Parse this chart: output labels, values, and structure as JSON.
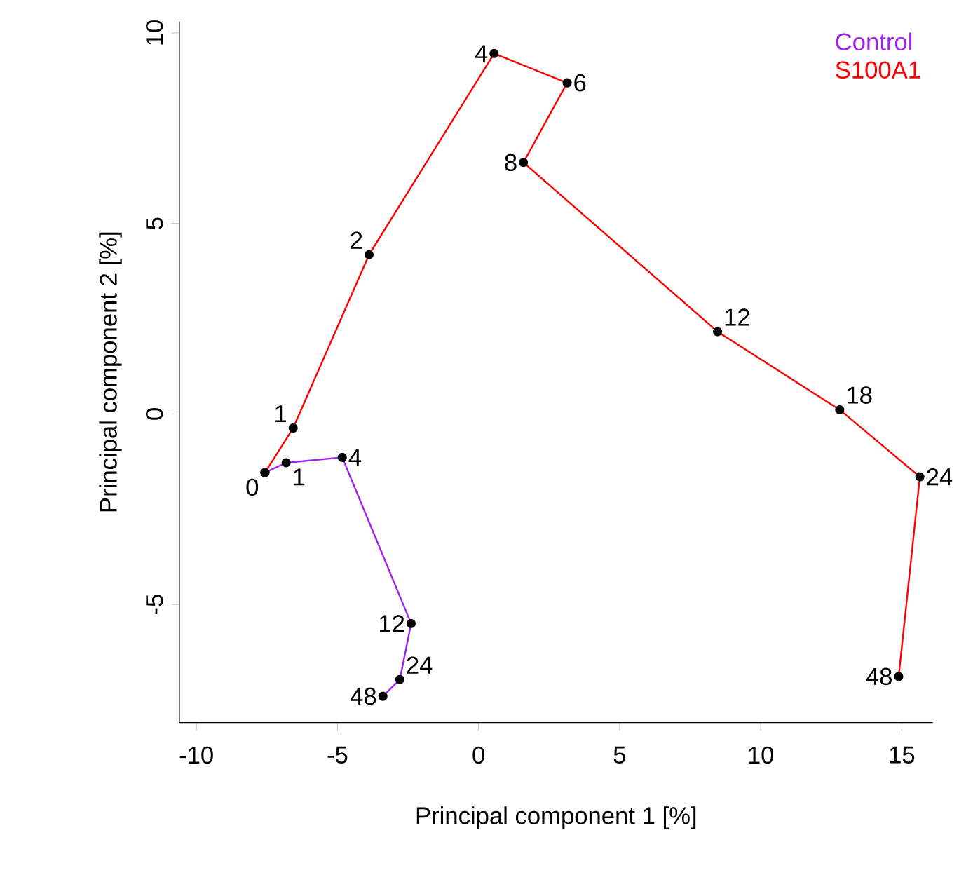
{
  "chart_data": {
    "type": "line",
    "xlabel": "Principal component 1 [%]",
    "ylabel": "Principal component 2 [%]",
    "xlim": [
      -10.6,
      16.1
    ],
    "ylim": [
      -8.1,
      10.3
    ],
    "xticks": [
      -10,
      -5,
      0,
      5,
      10,
      15
    ],
    "yticks": [
      -5,
      0,
      5,
      10
    ],
    "marker": "circle",
    "legend": "top right",
    "grid": false,
    "series": [
      {
        "name": "Control",
        "color": "#a020f0",
        "x": [
          -7.57,
          -6.82,
          -4.83,
          -2.39,
          -2.79,
          -3.39
        ],
        "values": [
          -1.54,
          -1.28,
          -1.14,
          -5.5,
          -6.97,
          -7.41
        ]
      },
      {
        "name": "S100A1",
        "color": "#ff0000",
        "x": [
          -7.57,
          -6.57,
          -3.88,
          0.55,
          3.14,
          1.59,
          8.47,
          12.8,
          15.64,
          14.89
        ],
        "values": [
          -1.54,
          -0.37,
          4.18,
          9.46,
          8.69,
          6.6,
          2.16,
          0.11,
          -1.65,
          -6.89
        ]
      }
    ],
    "annotations": [
      {
        "text": "0",
        "x": -7.57,
        "y": -1.54
      },
      {
        "text": "1",
        "x": -6.82,
        "y": -1.28
      },
      {
        "text": "4",
        "x": -4.83,
        "y": -1.14
      },
      {
        "text": "12",
        "x": -2.39,
        "y": -5.5
      },
      {
        "text": "24",
        "x": -2.79,
        "y": -6.97
      },
      {
        "text": "48",
        "x": -3.39,
        "y": -7.41
      },
      {
        "text": "1",
        "x": -6.57,
        "y": -0.37
      },
      {
        "text": "2",
        "x": -3.88,
        "y": 4.18
      },
      {
        "text": "4",
        "x": 0.55,
        "y": 9.46
      },
      {
        "text": "6",
        "x": 3.14,
        "y": 8.69
      },
      {
        "text": "8",
        "x": 1.59,
        "y": 6.6
      },
      {
        "text": "12",
        "x": 8.47,
        "y": 2.16
      },
      {
        "text": "18",
        "x": 12.8,
        "y": 0.11
      },
      {
        "text": "24",
        "x": 15.64,
        "y": -1.65
      },
      {
        "text": "48",
        "x": 14.89,
        "y": -6.89
      }
    ]
  }
}
